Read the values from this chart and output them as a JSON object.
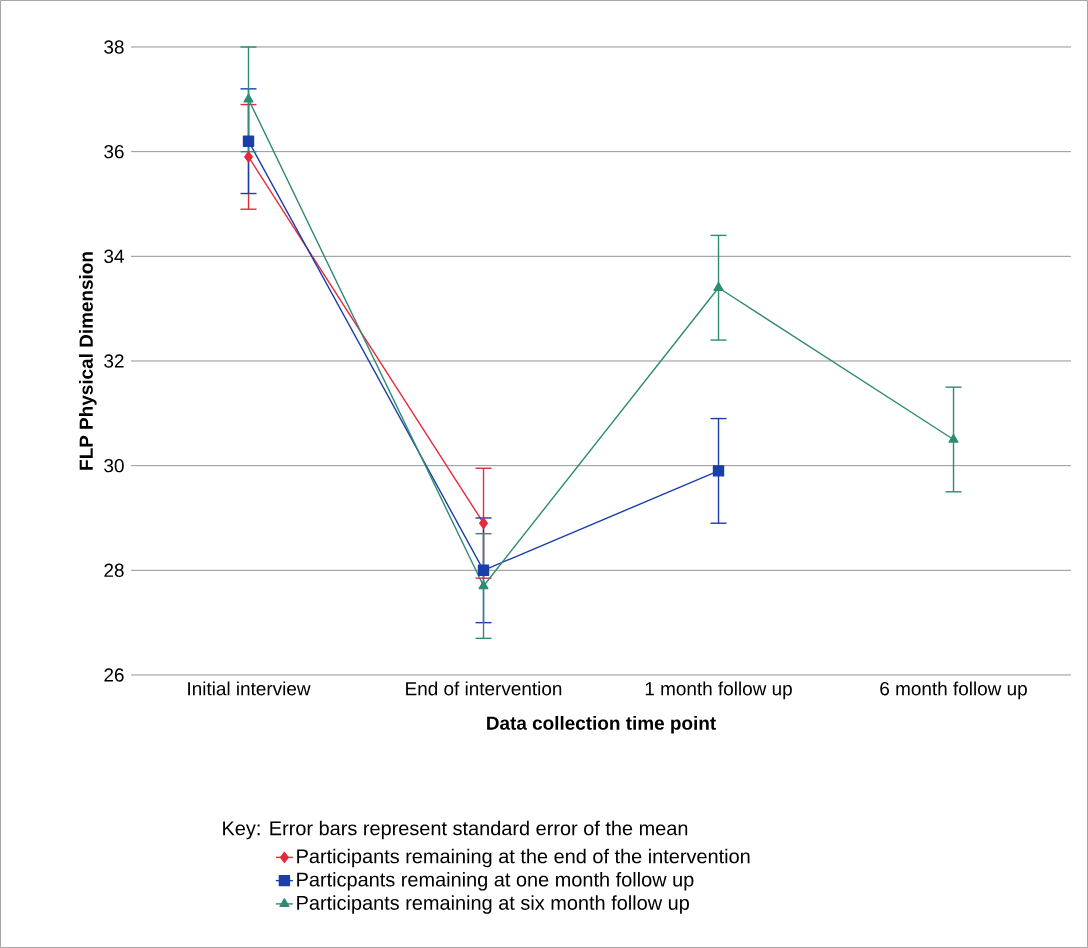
{
  "chart_data": {
    "type": "line",
    "xlabel": "Data collection time point",
    "ylabel": "FLP Physical Dimension",
    "legend_title": "Key:  Error bars represent standard error of the mean",
    "categories": [
      "Initial interview",
      "End of intervention",
      "1 month follow up",
      "6 month follow up"
    ],
    "ylim": [
      26,
      38
    ],
    "yticks": [
      26,
      28,
      30,
      32,
      34,
      36,
      38
    ],
    "grid": "y",
    "legend": "bottom",
    "series": [
      {
        "name": "Participants remaining at the end of the intervention",
        "color": "#e8283c",
        "marker": "diamond",
        "values": [
          35.9,
          28.9,
          null,
          null
        ],
        "errors": [
          1.0,
          1.05,
          null,
          null
        ]
      },
      {
        "name": "Particpants remaining at one month follow up",
        "color": "#1a3faa",
        "marker": "square",
        "values": [
          36.2,
          28.0,
          29.9,
          null
        ],
        "errors": [
          1.0,
          1.0,
          1.0,
          null
        ]
      },
      {
        "name": "Participants remaining at six month follow up",
        "color": "#2e8b74",
        "marker": "triangle",
        "values": [
          37.0,
          27.7,
          33.4,
          30.5
        ],
        "errors": [
          1.0,
          1.0,
          1.0,
          1.0
        ]
      }
    ]
  }
}
